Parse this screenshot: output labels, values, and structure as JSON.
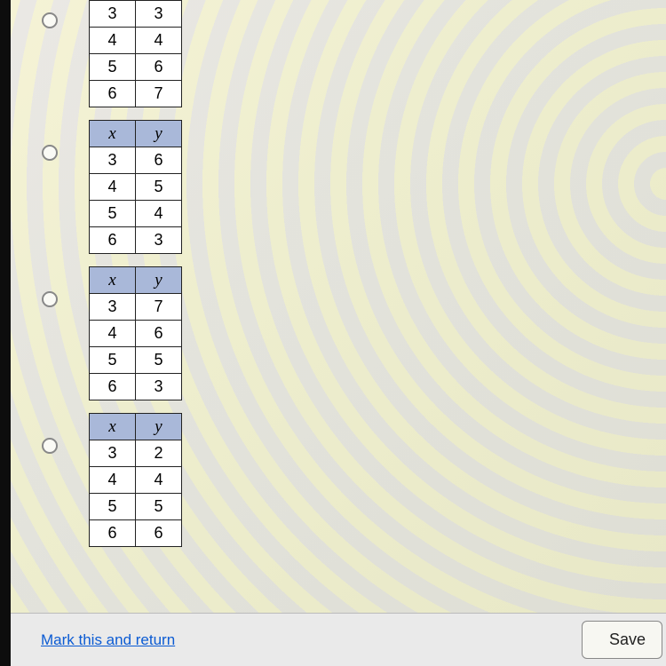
{
  "header_bg": "#a9b8d9",
  "header_x": "x",
  "header_y": "y",
  "options": [
    {
      "has_header": false,
      "rows": [
        [
          "3",
          "3"
        ],
        [
          "4",
          "4"
        ],
        [
          "5",
          "6"
        ],
        [
          "6",
          "7"
        ]
      ]
    },
    {
      "has_header": true,
      "rows": [
        [
          "3",
          "6"
        ],
        [
          "4",
          "5"
        ],
        [
          "5",
          "4"
        ],
        [
          "6",
          "3"
        ]
      ]
    },
    {
      "has_header": true,
      "rows": [
        [
          "3",
          "7"
        ],
        [
          "4",
          "6"
        ],
        [
          "5",
          "5"
        ],
        [
          "6",
          "3"
        ]
      ]
    },
    {
      "has_header": true,
      "rows": [
        [
          "3",
          "2"
        ],
        [
          "4",
          "4"
        ],
        [
          "5",
          "5"
        ],
        [
          "6",
          "6"
        ]
      ]
    }
  ],
  "footer": {
    "mark_label": "Mark this and return",
    "save_label": "Save"
  }
}
